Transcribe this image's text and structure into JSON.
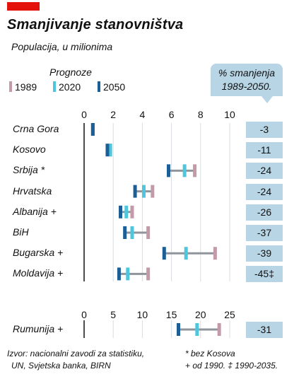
{
  "title": "Smanjivanje stanovništva",
  "subtitle": "Populacija, u milionima",
  "legend": {
    "title": "Prognoze",
    "items": [
      {
        "label": "1989",
        "color": "#c49aa8"
      },
      {
        "label": "2020",
        "color": "#4ec6dd"
      },
      {
        "label": "2050",
        "color": "#1c5f96"
      }
    ]
  },
  "pct_header": {
    "line1": "% smanjenja",
    "line2": "1989-2050."
  },
  "colors": {
    "line": "#8f959b",
    "grid": "#d9dde1",
    "axis": "#111111",
    "box": "#b7d5e5"
  },
  "chart_data": [
    {
      "type": "dot-range",
      "xlim": [
        0,
        10
      ],
      "ticks": [
        "0",
        "2",
        "4",
        "6",
        "8",
        "10"
      ],
      "tick_values": [
        0,
        2,
        4,
        6,
        8,
        10
      ],
      "rows": [
        {
          "country": "Crna Gora",
          "v1989": 0.6,
          "v2020": 0.6,
          "v2050": 0.6,
          "pct": "-3"
        },
        {
          "country": "Kosovo",
          "v1989": 1.8,
          "v2020": 1.8,
          "v2050": 1.6,
          "pct": "-11"
        },
        {
          "country": "Srbija *",
          "v1989": 7.6,
          "v2020": 6.9,
          "v2050": 5.8,
          "pct": "-24"
        },
        {
          "country": "Hrvatska",
          "v1989": 4.7,
          "v2020": 4.1,
          "v2050": 3.5,
          "pct": "-24"
        },
        {
          "country": "Albanija +",
          "v1989": 3.3,
          "v2020": 2.9,
          "v2050": 2.5,
          "pct": "-26"
        },
        {
          "country": "BiH",
          "v1989": 4.4,
          "v2020": 3.3,
          "v2050": 2.8,
          "pct": "-37"
        },
        {
          "country": "Bugarska +",
          "v1989": 9.0,
          "v2020": 7.0,
          "v2050": 5.5,
          "pct": "-39"
        },
        {
          "country": "Moldavija +",
          "v1989": 4.4,
          "v2020": 3.0,
          "v2050": 2.4,
          "pct": "-45‡"
        }
      ]
    },
    {
      "type": "dot-range",
      "xlim": [
        0,
        25
      ],
      "ticks": [
        "0",
        "5",
        "10",
        "15",
        "20",
        "25"
      ],
      "tick_values": [
        0,
        5,
        10,
        15,
        20,
        25
      ],
      "rows": [
        {
          "country": "Rumunija +",
          "v1989": 23.2,
          "v2020": 19.4,
          "v2050": 16.2,
          "pct": "-31"
        }
      ]
    }
  ],
  "footer": {
    "source_line1": "Izvor: nacionalni zavodi za statistiku,",
    "source_line2": "UN, Svjetska banka, BIRN",
    "note_line1": "* bez Kosova",
    "note_line2": "+ od 1990.  ‡ 1990-2035."
  }
}
